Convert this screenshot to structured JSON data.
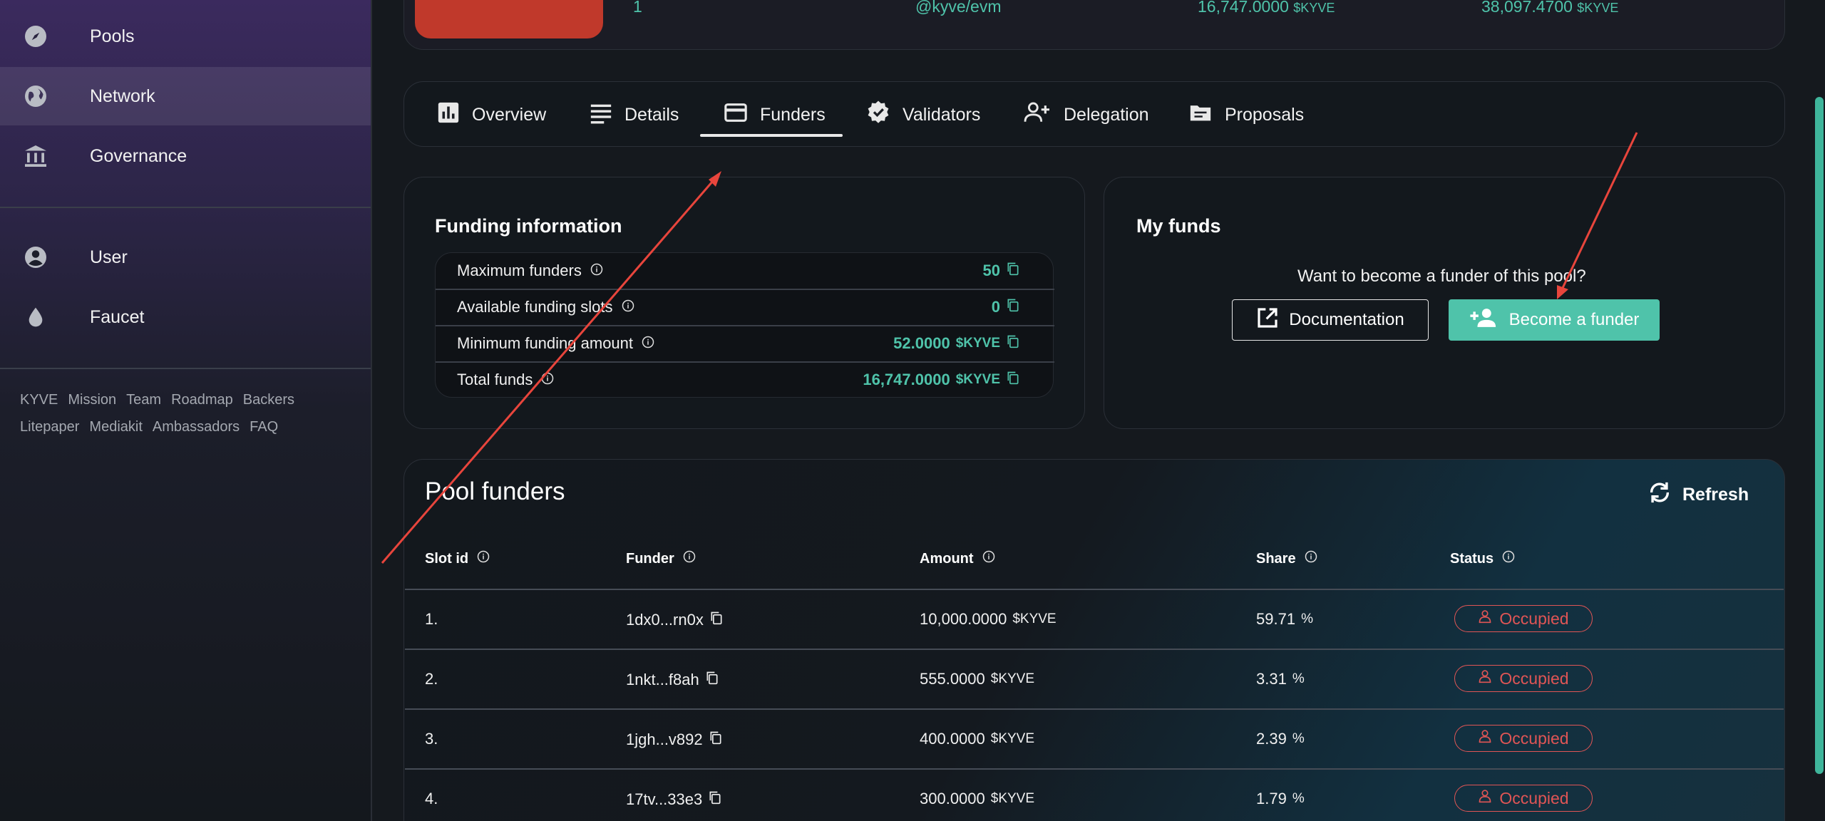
{
  "sidebar": {
    "items": [
      {
        "label": "Pools",
        "icon": "compass-icon"
      },
      {
        "label": "Network",
        "icon": "globe-icon"
      },
      {
        "label": "Governance",
        "icon": "bank-icon"
      },
      {
        "label": "User",
        "icon": "user-circle-icon"
      },
      {
        "label": "Faucet",
        "icon": "droplet-icon"
      }
    ],
    "active": "Network",
    "footer_row1": [
      "KYVE",
      "Mission",
      "Team",
      "Roadmap",
      "Backers"
    ],
    "footer_row2": [
      "Litepaper",
      "Mediakit",
      "Ambassadors",
      "FAQ"
    ]
  },
  "top_strip": {
    "id": "1",
    "runtime": "@kyve/evm",
    "total_funds": "16,747.0000",
    "total_delegation": "38,097.4700",
    "currency": "$KYVE"
  },
  "tabs": [
    {
      "label": "Overview",
      "icon": "chart-icon"
    },
    {
      "label": "Details",
      "icon": "lines-icon"
    },
    {
      "label": "Funders",
      "icon": "card-icon"
    },
    {
      "label": "Validators",
      "icon": "verified-icon"
    },
    {
      "label": "Delegation",
      "icon": "add-user-icon"
    },
    {
      "label": "Proposals",
      "icon": "folder-icon"
    }
  ],
  "active_tab": "Funders",
  "funding_info": {
    "title": "Funding information",
    "rows": [
      {
        "label": "Maximum funders",
        "value": "50",
        "unit": ""
      },
      {
        "label": "Available funding slots",
        "value": "0",
        "unit": ""
      },
      {
        "label": "Minimum funding amount",
        "value": "52.0000",
        "unit": "$KYVE"
      },
      {
        "label": "Total funds",
        "value": "16,747.0000",
        "unit": "$KYVE"
      }
    ]
  },
  "my_funds": {
    "title": "My funds",
    "question": "Want to become a funder of this pool?",
    "doc_button": "Documentation",
    "funder_button": "Become a funder"
  },
  "pool_funders": {
    "title": "Pool funders",
    "refresh_label": "Refresh",
    "columns": [
      "Slot id",
      "Funder",
      "Amount",
      "Share",
      "Status"
    ],
    "rows": [
      {
        "slot": "1.",
        "funder": "1dx0...rn0x",
        "amount": "10,000.0000",
        "unit": "$KYVE",
        "share": "59.71",
        "pct": "%",
        "status": "Occupied"
      },
      {
        "slot": "2.",
        "funder": "1nkt...f8ah",
        "amount": "555.0000",
        "unit": "$KYVE",
        "share": "3.31",
        "pct": "%",
        "status": "Occupied"
      },
      {
        "slot": "3.",
        "funder": "1jgh...v892",
        "amount": "400.0000",
        "unit": "$KYVE",
        "share": "2.39",
        "pct": "%",
        "status": "Occupied"
      },
      {
        "slot": "4.",
        "funder": "17tv...33e3",
        "amount": "300.0000",
        "unit": "$KYVE",
        "share": "1.79",
        "pct": "%",
        "status": "Occupied"
      }
    ]
  },
  "colors": {
    "accent": "#4fc3aa",
    "danger": "#e05555",
    "annotation_arrow": "#e8453c"
  }
}
